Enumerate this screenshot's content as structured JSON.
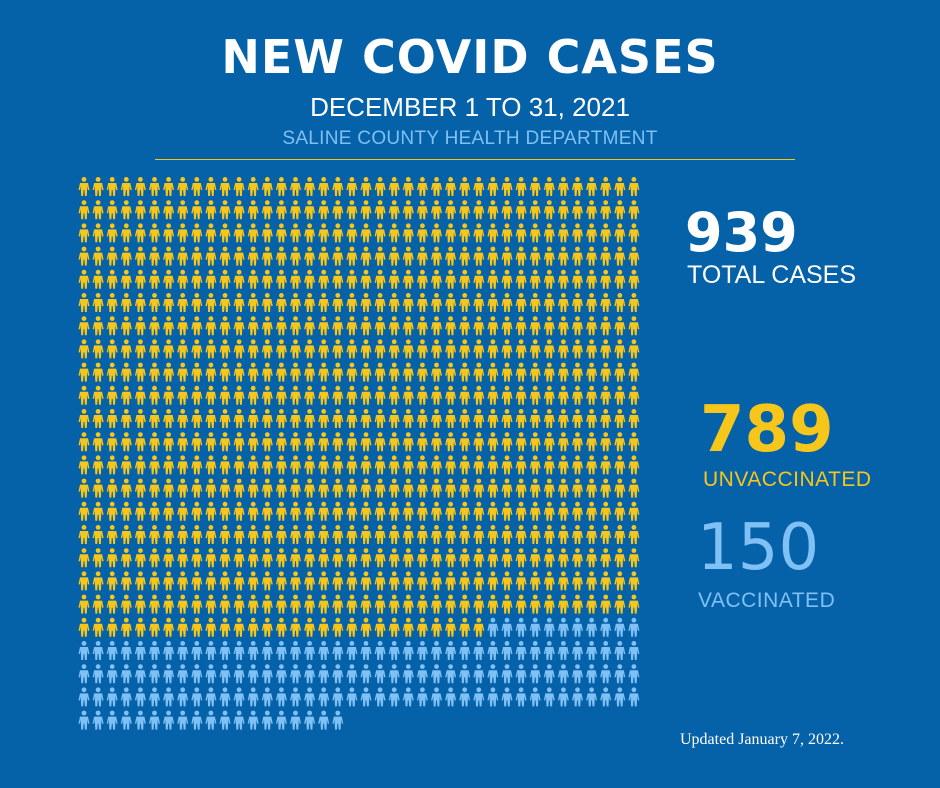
{
  "header": {
    "title": "NEW COVID CASES",
    "date_range": "DECEMBER 1 TO 31, 2021",
    "source": "SALINE COUNTY HEALTH DEPARTMENT"
  },
  "stats": {
    "total": {
      "value": "939",
      "label": "TOTAL CASES"
    },
    "unvaccinated": {
      "value": "789",
      "label": "UNVACCINATED"
    },
    "vaccinated": {
      "value": "150",
      "label": "VACCINATED"
    }
  },
  "footer": {
    "updated": "Updated January 7, 2022."
  },
  "colors": {
    "background": "#0561a8",
    "unvaccinated": "#f7c61a",
    "vaccinated": "#7fc0f5",
    "text": "#ffffff"
  },
  "chart_data": {
    "type": "pictograph",
    "unit": "person icon = 1 case",
    "categories": [
      "UNVACCINATED",
      "VACCINATED"
    ],
    "values": [
      789,
      150
    ],
    "total": 939
  }
}
